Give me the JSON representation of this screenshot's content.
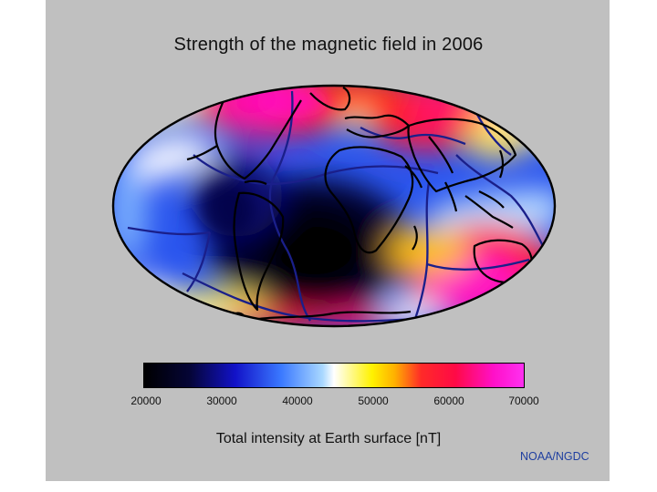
{
  "map": {
    "title": "Strength of the magnetic field in 2006",
    "projection": "mollweide",
    "colorbar": {
      "ticks": [
        "20000",
        "30000",
        "40000",
        "50000",
        "60000",
        "70000"
      ],
      "label": "Total intensity at Earth surface [nT]",
      "colors": [
        "#000000",
        "#050536",
        "#1212c8",
        "#3a78ff",
        "#ffffff",
        "#fff200",
        "#ff2a28",
        "#ff10c8"
      ]
    },
    "credit": "NOAA/NGDC",
    "colors": {
      "background": "#c0c0c0",
      "plate_boundaries": "#1a1f8a",
      "coastlines": "#000000"
    }
  }
}
